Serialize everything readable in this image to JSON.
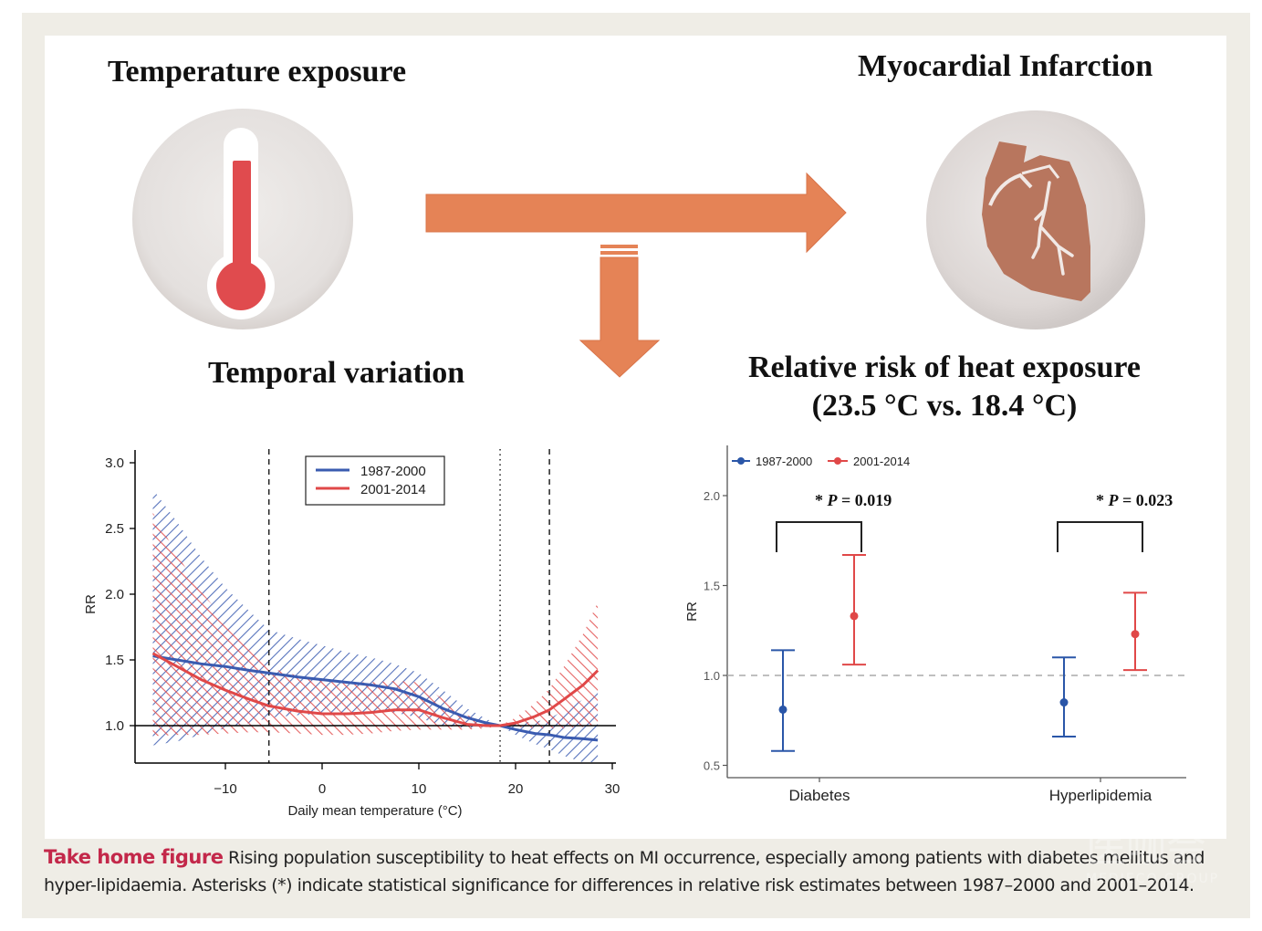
{
  "header": {
    "temperature_title": "Temperature exposure",
    "mi_title": "Myocardial Infarction",
    "temporal_title": "Temporal variation",
    "rr_title_line1": "Relative risk of heat exposure",
    "rr_title_line2": "(23.5 °C vs. 18.4 °C)"
  },
  "icons": {
    "thermometer": "thermometer-icon",
    "heart": "heart-icon",
    "arrow_right": "arrow-right-icon",
    "arrow_down": "arrow-down-icon"
  },
  "colors": {
    "blue": "#3a5bb0",
    "red": "#e04848",
    "arrow": "#e58356",
    "heart": "#b8765e",
    "thermo": "#e04b4e",
    "caption_lead": "#c3284a",
    "frame": "#efede6"
  },
  "caption": {
    "lead": "Take home figure",
    "text": " Rising population susceptibility to heat effects on MI occurrence, especially among patients with diabetes mellitus and hyper-lipidaemia. Asterisks (*) indicate statistical significance for differences in relative risk estimates between 1987–2000 and 2001–2014."
  },
  "watermark": {
    "text": "医咖会",
    "subtext": "MEDIECO GROUP"
  },
  "chart_data": [
    {
      "type": "line",
      "title": "Temporal variation",
      "xlabel": "Daily mean temperature (°C)",
      "ylabel": "RR",
      "xlim": [
        -19,
        30
      ],
      "ylim": [
        0.7,
        3.05
      ],
      "xticks": [
        -10,
        0,
        10,
        20,
        30
      ],
      "xtick_labels": [
        "−10",
        "0",
        "10",
        "20",
        "30"
      ],
      "yticks": [
        1.0,
        1.5,
        2.0,
        2.5,
        3.0
      ],
      "ytick_labels": [
        "1.0",
        "1.5",
        "2.0",
        "2.5",
        "3.0"
      ],
      "reference_line": 1.0,
      "vlines": [
        {
          "x": -5.5,
          "style": "dashed"
        },
        {
          "x": 18.4,
          "style": "dotted"
        },
        {
          "x": 23.5,
          "style": "dashed"
        }
      ],
      "legend_position": "top-center",
      "x": [
        -17.5,
        -15,
        -12.5,
        -10,
        -7.5,
        -5.5,
        -2.5,
        0,
        2.5,
        5,
        7.5,
        10,
        12.5,
        15,
        17,
        18.4,
        20,
        22,
        23.5,
        25,
        27,
        28.5
      ],
      "series": [
        {
          "name": "1987-2000",
          "color": "#3a5bb0",
          "values": [
            1.53,
            1.5,
            1.47,
            1.45,
            1.42,
            1.4,
            1.37,
            1.35,
            1.33,
            1.31,
            1.28,
            1.22,
            1.13,
            1.06,
            1.02,
            1.0,
            0.97,
            0.94,
            0.93,
            0.91,
            0.9,
            0.89
          ],
          "ci_upper": [
            2.8,
            2.55,
            2.28,
            2.05,
            1.87,
            1.73,
            1.66,
            1.61,
            1.56,
            1.52,
            1.47,
            1.4,
            1.27,
            1.13,
            1.05,
            1.0,
            1.02,
            1.03,
            1.05,
            1.12,
            1.2,
            1.28
          ],
          "ci_lower": [
            0.85,
            0.88,
            0.93,
            0.98,
            1.02,
            1.06,
            1.08,
            1.09,
            1.09,
            1.1,
            1.1,
            1.06,
            1.0,
            0.98,
            0.99,
            1.0,
            0.93,
            0.86,
            0.82,
            0.77,
            0.72,
            0.7
          ]
        },
        {
          "name": "2001-2014",
          "color": "#e04848",
          "values": [
            1.55,
            1.45,
            1.35,
            1.27,
            1.2,
            1.15,
            1.11,
            1.09,
            1.09,
            1.1,
            1.12,
            1.12,
            1.06,
            1.01,
            1.0,
            1.0,
            1.02,
            1.07,
            1.12,
            1.2,
            1.31,
            1.42
          ],
          "ci_upper": [
            2.62,
            2.3,
            2.02,
            1.8,
            1.6,
            1.44,
            1.38,
            1.34,
            1.33,
            1.33,
            1.34,
            1.33,
            1.2,
            1.08,
            1.02,
            1.0,
            1.06,
            1.17,
            1.28,
            1.45,
            1.7,
            1.94
          ],
          "ci_lower": [
            0.92,
            0.93,
            0.93,
            0.94,
            0.95,
            0.95,
            0.94,
            0.93,
            0.93,
            0.94,
            0.96,
            0.97,
            0.97,
            0.97,
            0.98,
            1.0,
            0.99,
            0.98,
            0.98,
            0.98,
            0.99,
            1.0
          ]
        }
      ]
    },
    {
      "type": "scatter",
      "title": "Relative risk of heat exposure (23.5 °C vs. 18.4 °C)",
      "xlabel": "",
      "ylabel": "RR",
      "categories": [
        "Diabetes",
        "Hyperlipidemia"
      ],
      "ylim": [
        0.45,
        2.2
      ],
      "yticks": [
        0.5,
        1.0,
        1.5,
        2.0
      ],
      "ytick_labels": [
        "0.5",
        "1.0",
        "1.5",
        "2.0"
      ],
      "reference_line": 1.0,
      "legend_position": "top-left",
      "series": [
        {
          "name": "1987-2000",
          "color": "#2a56a8",
          "values": [
            0.81,
            0.85
          ],
          "ci_lower": [
            0.58,
            0.66
          ],
          "ci_upper": [
            1.14,
            1.1
          ]
        },
        {
          "name": "2001-2014",
          "color": "#e04848",
          "values": [
            1.33,
            1.23
          ],
          "ci_lower": [
            1.06,
            1.03
          ],
          "ci_upper": [
            1.67,
            1.46
          ]
        }
      ],
      "annotations": [
        {
          "category": "Diabetes",
          "star": "*",
          "label": "P = 0.019",
          "p": "P",
          "value": "0.019"
        },
        {
          "category": "Hyperlipidemia",
          "star": "*",
          "label": "P = 0.023",
          "p": "P",
          "value": "0.023"
        }
      ]
    }
  ]
}
